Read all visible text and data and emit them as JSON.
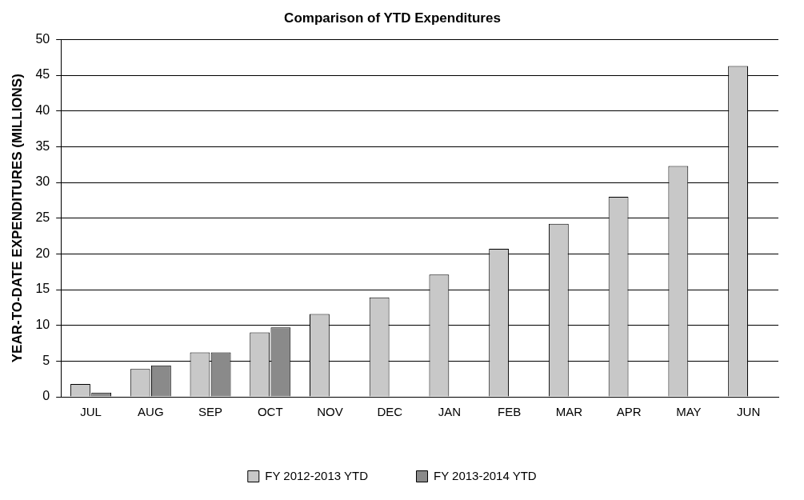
{
  "chart_data": {
    "type": "bar",
    "title": "Comparison of YTD Expenditures",
    "ylabel": "YEAR-TO-DATE EXPENDITURES (MILLIONS)",
    "categories": [
      "JUL",
      "AUG",
      "SEP",
      "OCT",
      "NOV",
      "DEC",
      "JAN",
      "FEB",
      "MAR",
      "APR",
      "MAY",
      "JUN"
    ],
    "series": [
      {
        "name": "FY 2012-2013 YTD",
        "color": "#c8c8c8",
        "values": [
          1.8,
          3.9,
          6.2,
          9.0,
          11.6,
          13.9,
          17.1,
          20.7,
          24.2,
          28.0,
          32.3,
          46.3
        ]
      },
      {
        "name": "FY 2013-2014 YTD",
        "color": "#8a8a8a",
        "values": [
          0.6,
          4.4,
          6.2,
          9.7,
          null,
          null,
          null,
          null,
          null,
          null,
          null,
          null
        ]
      }
    ],
    "ylim": [
      0,
      50
    ],
    "yticks": [
      0,
      5,
      10,
      15,
      20,
      25,
      30,
      35,
      40,
      45,
      50
    ],
    "grid": "y",
    "legend": "bottom"
  }
}
